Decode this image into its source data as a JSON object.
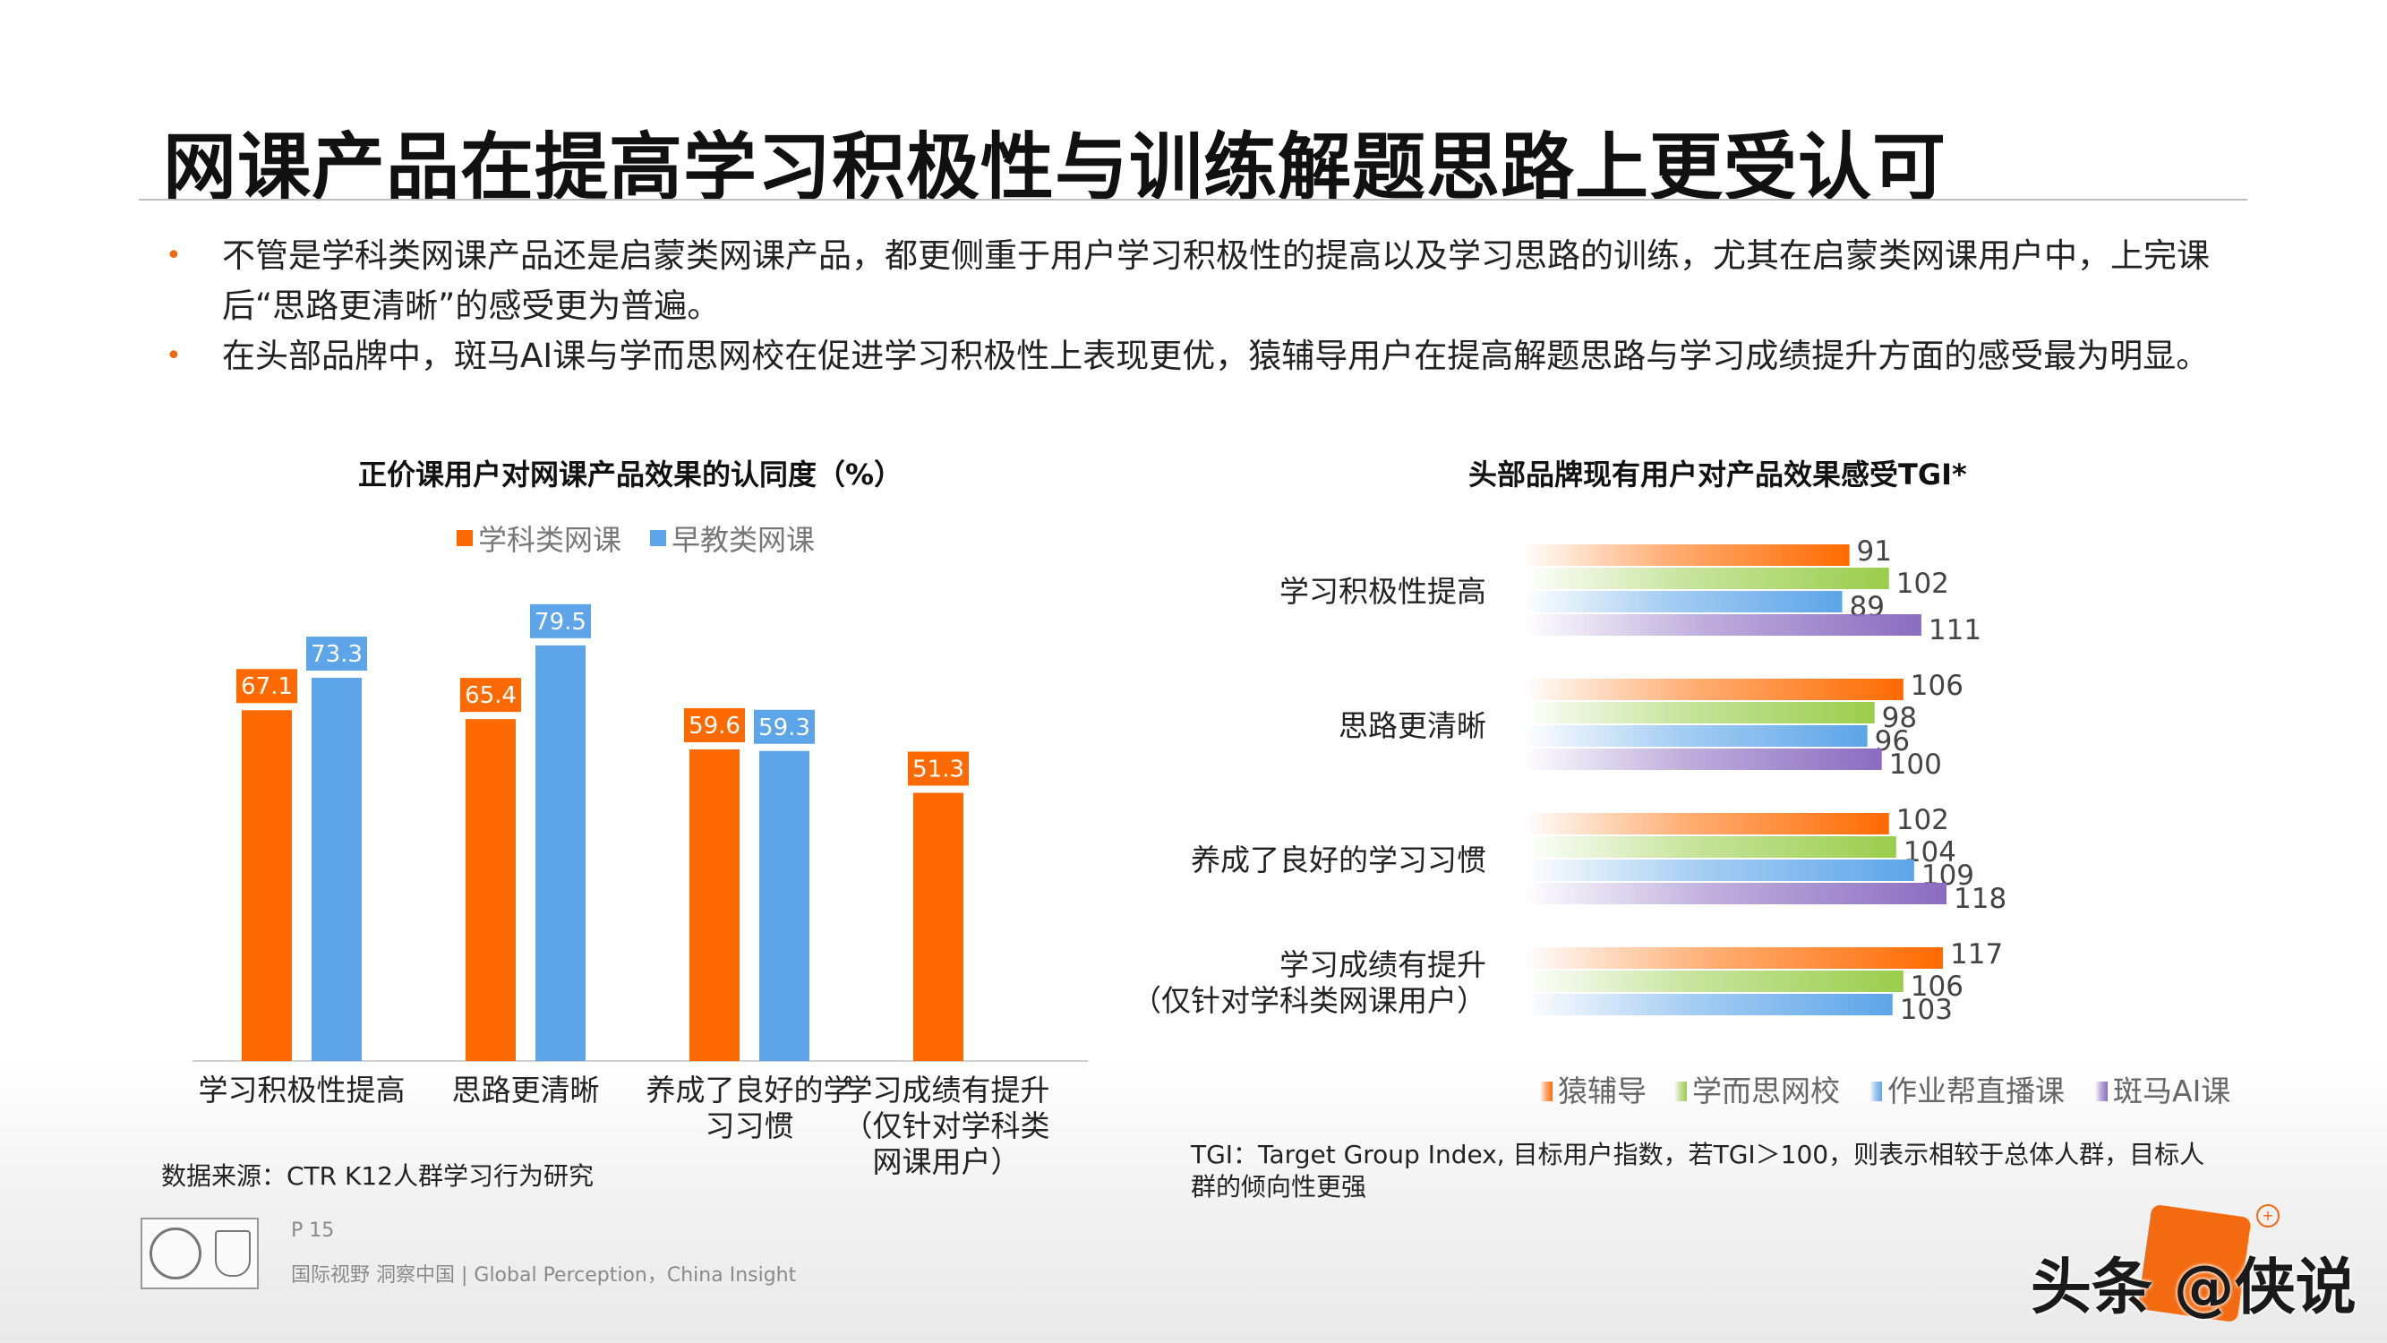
{
  "page_title": "网课产品在提高学习积极性与训练解题思路上更受认可",
  "bullets": [
    "不管是学科类网课产品还是启蒙类网课产品，都更侧重于用户学习积极性的提高以及学习思路的训练，尤其在启蒙类网课用户中，上完课后“思路更清晰”的感受更为普遍。",
    "在头部品牌中，斑马AI课与学而思网校在促进学习积极性上表现更优，猿辅导用户在提高解题思路与学习成绩提升方面的感受最为明显。"
  ],
  "bullet_marker": "•",
  "source_note": "数据来源：CTR K12人群学习行为研究",
  "tgi_note": "TGI：Target Group Index, 目标用户指数，若TGI＞100，则表示相较于总体人群，目标人群的倾向性更强",
  "footer": {
    "page": "P 15",
    "tagline": "国际视野  洞察中国 |  Global Perception，China Insight"
  },
  "watermark": "头条 @侠说",
  "colors": {
    "orange": "#FF6A00",
    "blue": "#5DA5E8",
    "green": "#9ACD4C",
    "purple": "#8A6CC0"
  },
  "chart_data": [
    {
      "type": "bar",
      "title": "正价课用户对网课产品效果的认同度（%）",
      "categories": [
        [
          "学习积极性提高"
        ],
        [
          "思路更清晰"
        ],
        [
          "养成了良好的学",
          "习习惯"
        ],
        [
          "学习成绩有提升",
          "（仅针对学科类",
          "网课用户）"
        ]
      ],
      "series": [
        {
          "name": "学科类网课",
          "color": "#FF6A00",
          "values": [
            67.1,
            65.4,
            59.6,
            51.3
          ]
        },
        {
          "name": "早教类网课",
          "color": "#5DA5E8",
          "values": [
            73.3,
            79.5,
            59.3,
            null
          ]
        }
      ],
      "ylim": [
        0,
        90
      ],
      "legend": "top",
      "grid": false
    },
    {
      "type": "bar",
      "orientation": "horizontal",
      "title": "头部品牌现有用户对产品效果感受TGI*",
      "categories": [
        [
          "学习积极性提高"
        ],
        [
          "思路更清晰"
        ],
        [
          "养成了良好的学习习惯"
        ],
        [
          "学习成绩有提升",
          "（仅针对学科类网课用户）"
        ]
      ],
      "series": [
        {
          "name": "猿辅导",
          "color": "#FF6A00",
          "values": [
            91,
            106,
            102,
            117
          ]
        },
        {
          "name": "学而思网校",
          "color": "#9ACD4C",
          "values": [
            102,
            98,
            104,
            106
          ]
        },
        {
          "name": "作业帮直播课",
          "color": "#5DA5E8",
          "values": [
            89,
            96,
            109,
            103
          ]
        },
        {
          "name": "斑马AI课",
          "color": "#8A6CC0",
          "values": [
            111,
            100,
            118,
            null
          ]
        }
      ],
      "xlim": [
        0,
        130
      ],
      "legend": "bottom",
      "grid": false
    }
  ]
}
